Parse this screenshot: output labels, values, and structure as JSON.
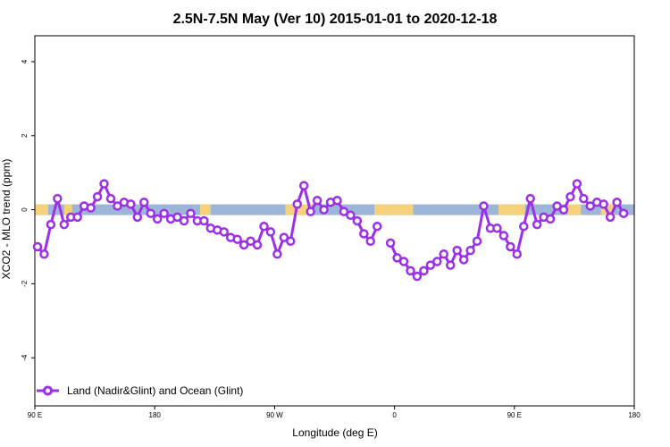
{
  "chart_data": {
    "type": "line",
    "title": "2.5N-7.5N May (Ver 10)   2015-01-01 to 2020-12-18",
    "xlabel": "Longitude (deg E)",
    "ylabel": "XCO2 - MLO trend (ppm)",
    "xlim": [
      90,
      540
    ],
    "ylim": [
      -5.3,
      4.7
    ],
    "x_ticks": [
      {
        "value": 90,
        "label": "90 E"
      },
      {
        "value": 180,
        "label": "180"
      },
      {
        "value": 270,
        "label": "90 W"
      },
      {
        "value": 360,
        "label": "0"
      },
      {
        "value": 450,
        "label": "90 E"
      },
      {
        "value": 540,
        "label": "180"
      }
    ],
    "y_ticks": [
      {
        "value": 4,
        "label": "4"
      },
      {
        "value": 2,
        "label": "2"
      },
      {
        "value": 0,
        "label": "0"
      },
      {
        "value": -2,
        "label": "-2"
      },
      {
        "value": -4,
        "label": "-4"
      }
    ],
    "land_segments": [
      [
        90,
        100
      ],
      [
        112,
        118
      ],
      [
        214,
        222
      ],
      [
        278,
        298
      ],
      [
        345,
        374
      ],
      [
        438,
        458
      ],
      [
        490,
        500
      ],
      [
        515,
        525
      ]
    ],
    "series": [
      {
        "name": "Land (Nadir&Glint) and Ocean (Glint)",
        "color": "#9b30e8",
        "x": [
          92,
          97,
          102,
          107,
          112,
          117,
          122,
          127,
          132,
          137,
          142,
          147,
          152,
          157,
          162,
          167,
          172,
          177,
          182,
          187,
          192,
          197,
          202,
          207,
          212,
          217,
          222,
          227,
          232,
          237,
          242,
          247,
          252,
          257,
          262,
          267,
          272,
          277,
          282,
          287,
          292,
          297,
          302,
          307,
          312,
          317,
          322,
          327,
          332,
          337,
          342,
          347,
          352,
          357,
          362,
          367,
          372,
          377,
          382,
          387,
          392,
          397,
          402,
          407,
          412,
          417,
          422,
          427,
          432,
          437,
          442,
          447,
          452,
          457,
          462,
          467,
          472,
          477,
          482,
          487,
          492,
          497,
          502,
          507,
          512,
          517,
          522,
          527,
          532,
          537,
          540
        ],
        "y": [
          -1.0,
          -1.2,
          -0.4,
          0.3,
          -0.4,
          -0.2,
          -0.2,
          0.1,
          0.05,
          0.35,
          0.7,
          0.3,
          0.1,
          0.2,
          0.15,
          -0.2,
          0.2,
          -0.1,
          -0.25,
          -0.1,
          -0.25,
          -0.2,
          -0.3,
          -0.1,
          -0.3,
          -0.3,
          -0.5,
          -0.55,
          -0.6,
          -0.75,
          -0.8,
          -0.95,
          -0.85,
          -0.95,
          -0.45,
          -0.6,
          -1.2,
          -0.75,
          -0.85,
          0.15,
          0.65,
          -0.05,
          0.25,
          0.0,
          0.2,
          0.25,
          -0.05,
          -0.15,
          -0.3,
          -0.65,
          -0.85,
          -0.45,
          null,
          -0.9,
          -1.3,
          -1.4,
          -1.65,
          -1.8,
          -1.65,
          -1.5,
          -1.4,
          -1.2,
          -1.5,
          -1.1,
          -1.35,
          -1.1,
          -0.85,
          0.1,
          -0.5,
          -0.5,
          -0.7,
          -1.0,
          -1.2,
          -0.45,
          0.3,
          -0.4,
          -0.2,
          -0.25,
          0.1,
          0.0,
          0.35,
          0.7,
          0.3,
          0.1,
          0.2,
          0.15,
          -0.2,
          0.2,
          -0.1,
          null,
          null
        ]
      }
    ],
    "legend_position": "bottom-left",
    "grid": false,
    "ocean_color": "#9db5d8",
    "land_color": "#f5d27a"
  }
}
